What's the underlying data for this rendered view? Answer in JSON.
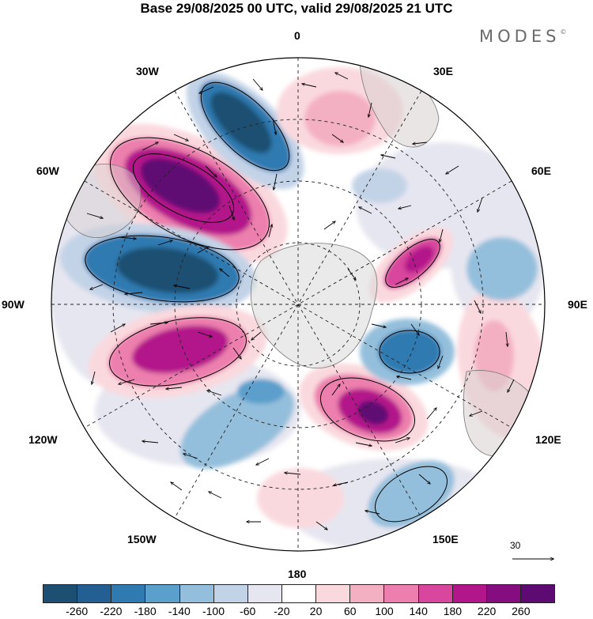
{
  "title": "Base 29/08/2025 00 UTC, valid 29/08/2025 21 UTC",
  "brand": "MODES",
  "brand_mark": "©",
  "longitude_labels": {
    "lon_0": "0",
    "lon_30e": "30E",
    "lon_60e": "60E",
    "lon_90e": "90E",
    "lon_120e": "120E",
    "lon_150e": "150E",
    "lon_180": "180",
    "lon_150w": "150W",
    "lon_120w": "120W",
    "lon_90w": "90W",
    "lon_60w": "60W",
    "lon_30w": "30W"
  },
  "reference_vector": "30",
  "colorbar": {
    "colors": [
      "#1d4f72",
      "#235f92",
      "#2f7ab1",
      "#5b9fcc",
      "#94bfdc",
      "#c3d3e7",
      "#e6e6f0",
      "#ffffff",
      "#fad9de",
      "#f4b0c3",
      "#ec7fad",
      "#d8469d",
      "#b3158a",
      "#860d7f",
      "#5e0a73"
    ],
    "ticks": [
      "-260",
      "-220",
      "-180",
      "-140",
      "-100",
      "-60",
      "-20",
      "20",
      "60",
      "100",
      "140",
      "180",
      "220",
      "260"
    ]
  }
}
